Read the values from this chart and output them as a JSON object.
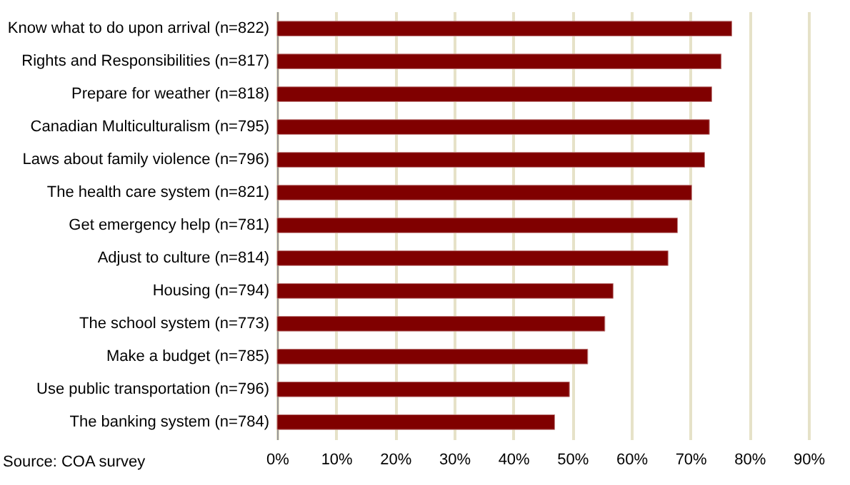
{
  "chart_data": {
    "type": "bar",
    "orientation": "horizontal",
    "categories": [
      "Know what to do upon arrival (n=822)",
      "Rights and Responsibilities  (n=817)",
      "Prepare for weather  (n=818)",
      "Canadian Multiculturalism  (n=795)",
      "Laws about family violence  (n=796)",
      "The health care system  (n=821)",
      "Get emergency help  (n=781)",
      "Adjust to culture  (n=814)",
      "Housing  (n=794)",
      "The school system  (n=773)",
      "Make a budget  (n=785)",
      "Use public transportation  (n=796)",
      "The banking system  (n=784)"
    ],
    "values": [
      0.77,
      0.752,
      0.736,
      0.732,
      0.724,
      0.702,
      0.678,
      0.662,
      0.569,
      0.555,
      0.526,
      0.495,
      0.47
    ],
    "color": "#800000",
    "xlim": [
      0,
      0.9
    ],
    "xticks": [
      {
        "value": 0,
        "label": "0%"
      },
      {
        "value": 0.1,
        "label": "10%"
      },
      {
        "value": 0.2,
        "label": "20%"
      },
      {
        "value": 0.3,
        "label": "30%"
      },
      {
        "value": 0.4,
        "label": "40%"
      },
      {
        "value": 0.5,
        "label": "50%"
      },
      {
        "value": 0.6,
        "label": "60%"
      },
      {
        "value": 0.7,
        "label": "70%"
      },
      {
        "value": 0.8,
        "label": "80%"
      },
      {
        "value": 0.9,
        "label": "90%"
      }
    ],
    "grid": "x",
    "annotations": [
      "Source: COA survey"
    ]
  }
}
